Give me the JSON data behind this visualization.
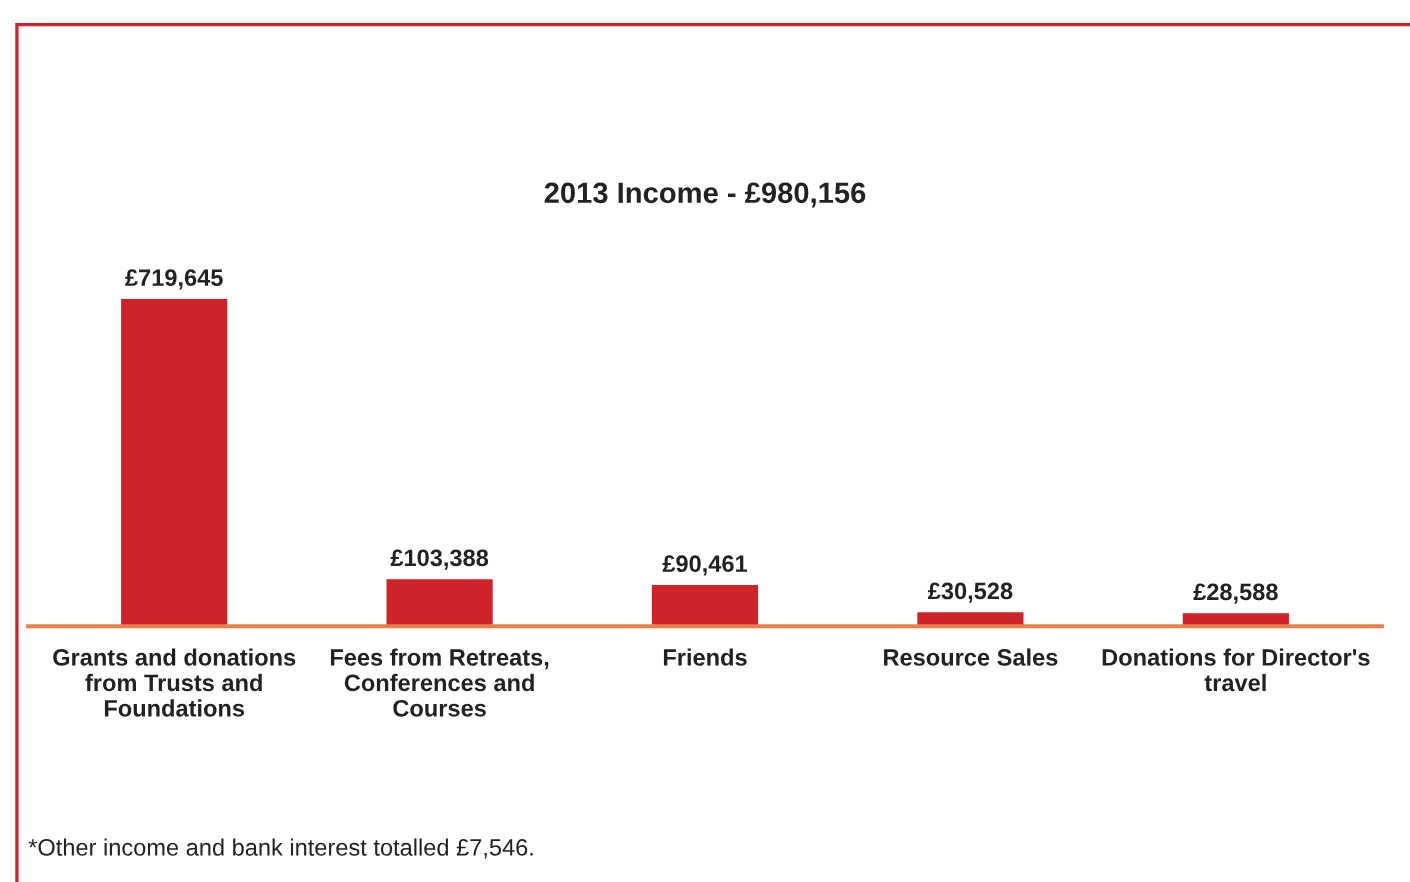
{
  "chart_data": {
    "type": "bar",
    "title": "2013 Income - £980,156",
    "categories": [
      "Grants and donations\nfrom Trusts and\nFoundations",
      "Fees from Retreats,\nConferences and\nCourses",
      "Friends",
      "Resource Sales",
      "Donations for Director's\ntravel"
    ],
    "values": [
      719645,
      103388,
      90461,
      30528,
      28588
    ],
    "value_labels": [
      "£719,645",
      "£103,388",
      "£90,461",
      "£30,528",
      "£28,588"
    ],
    "color": "#d02229",
    "grid": false,
    "legend": false,
    "annotations": [
      "*Other income and bank interest totalled £7,546."
    ]
  }
}
